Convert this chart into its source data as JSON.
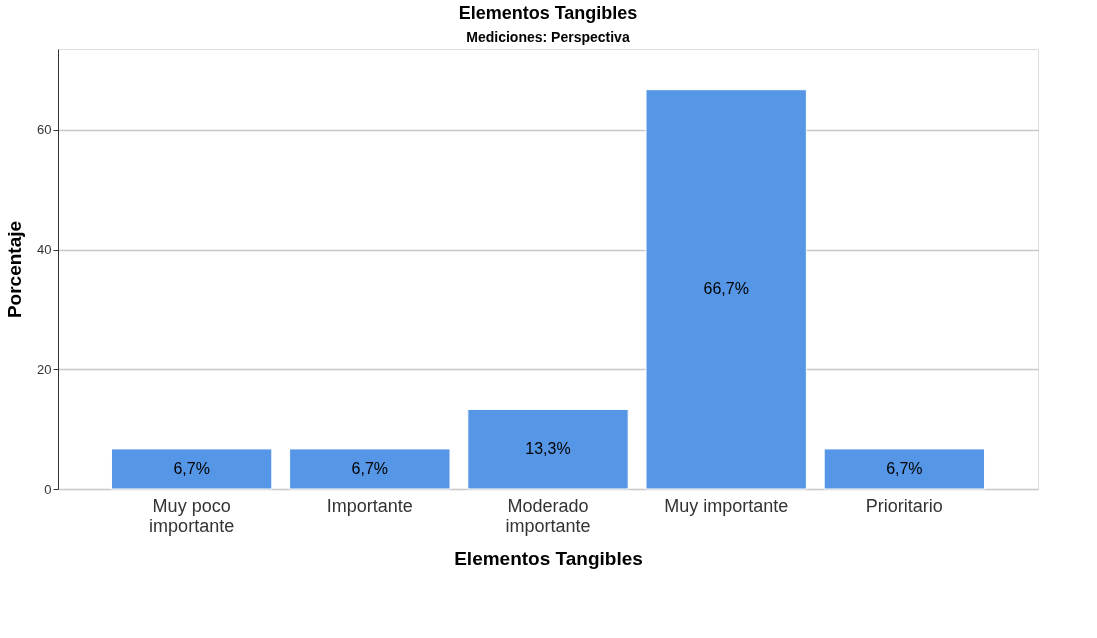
{
  "chart_data": {
    "type": "bar",
    "title": "Elementos Tangibles",
    "subtitle": "Mediciones: Perspectiva",
    "xlabel": "Elementos Tangibles",
    "ylabel": "Porcentaje",
    "categories": [
      "Muy poco importante",
      "Importante",
      "Moderado importante",
      "Muy importante",
      "Prioritario"
    ],
    "values": [
      6.7,
      6.7,
      13.3,
      66.7,
      6.7
    ],
    "value_labels": [
      "6,7%",
      "6,7%",
      "13,3%",
      "66,7%",
      "6,7%"
    ],
    "color": "#5596e6",
    "ylim": [
      0,
      73.5
    ],
    "yticks": [
      0,
      20,
      40,
      60
    ],
    "grid": "y"
  }
}
